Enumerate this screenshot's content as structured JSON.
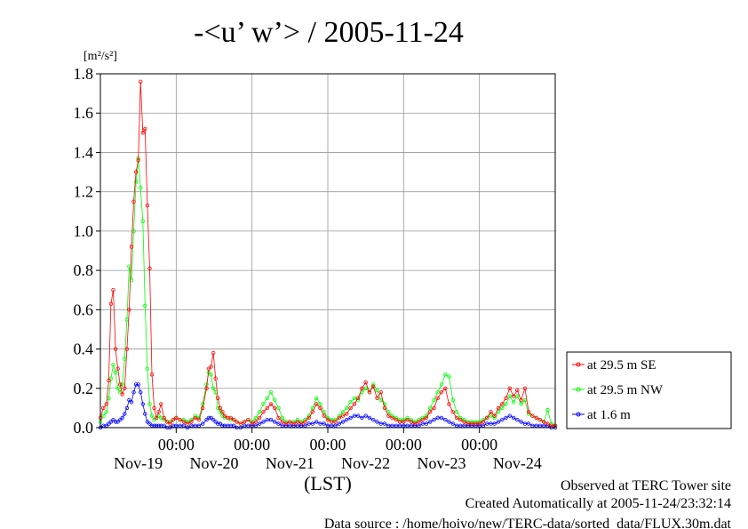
{
  "chart_data": {
    "type": "line",
    "title": "-<u’ w’> / 2005-11-24",
    "ylabel_unit": "[m²/s²]",
    "xlabel": "(LST)",
    "ylim": [
      0,
      1.8
    ],
    "xlim": [
      0,
      6
    ],
    "y_ticks": [
      "0.0",
      "0.2",
      "0.4",
      "0.6",
      "0.8",
      "1.0",
      "1.2",
      "1.4",
      "1.6",
      "1.8"
    ],
    "x_ticks": [
      {
        "pos": 1,
        "time": "00:00"
      },
      {
        "pos": 2,
        "time": "00:00"
      },
      {
        "pos": 3,
        "time": "00:00"
      },
      {
        "pos": 4,
        "time": "00:00"
      },
      {
        "pos": 5,
        "time": "00:00"
      }
    ],
    "x_day_labels": [
      {
        "pos": 0.5,
        "label": "Nov-19"
      },
      {
        "pos": 1.5,
        "label": "Nov-20"
      },
      {
        "pos": 2.5,
        "label": "Nov-21"
      },
      {
        "pos": 3.5,
        "label": "Nov-22"
      },
      {
        "pos": 4.5,
        "label": "Nov-23"
      },
      {
        "pos": 5.5,
        "label": "Nov-24"
      }
    ],
    "grid": true,
    "legend_position": "right",
    "series": [
      {
        "name": "at 29.5 m SE",
        "color": "#ff0000",
        "x": [
          0.0,
          0.04,
          0.08,
          0.11,
          0.14,
          0.17,
          0.2,
          0.23,
          0.26,
          0.29,
          0.32,
          0.35,
          0.38,
          0.41,
          0.44,
          0.47,
          0.5,
          0.53,
          0.56,
          0.59,
          0.62,
          0.65,
          0.68,
          0.71,
          0.74,
          0.77,
          0.8,
          0.84,
          0.88,
          0.92,
          0.96,
          1.0,
          1.05,
          1.1,
          1.15,
          1.2,
          1.25,
          1.3,
          1.35,
          1.4,
          1.43,
          1.46,
          1.49,
          1.52,
          1.55,
          1.58,
          1.61,
          1.64,
          1.68,
          1.72,
          1.76,
          1.8,
          1.85,
          1.9,
          1.95,
          2.0,
          2.05,
          2.1,
          2.15,
          2.2,
          2.25,
          2.3,
          2.35,
          2.4,
          2.45,
          2.5,
          2.55,
          2.6,
          2.65,
          2.7,
          2.75,
          2.8,
          2.85,
          2.9,
          2.95,
          3.0,
          3.05,
          3.1,
          3.15,
          3.2,
          3.25,
          3.3,
          3.35,
          3.4,
          3.45,
          3.5,
          3.55,
          3.6,
          3.65,
          3.7,
          3.75,
          3.8,
          3.85,
          3.9,
          3.95,
          4.0,
          4.05,
          4.1,
          4.15,
          4.2,
          4.25,
          4.3,
          4.35,
          4.4,
          4.45,
          4.5,
          4.55,
          4.6,
          4.65,
          4.7,
          4.75,
          4.8,
          4.85,
          4.9,
          4.95,
          5.0,
          5.05,
          5.1,
          5.15,
          5.2,
          5.25,
          5.3,
          5.35,
          5.4,
          5.45,
          5.5,
          5.55,
          5.6,
          5.65,
          5.7,
          5.75,
          5.8,
          5.85,
          5.9,
          5.95,
          6.0
        ],
        "values": [
          0.05,
          0.1,
          0.12,
          0.24,
          0.63,
          0.7,
          0.4,
          0.3,
          0.22,
          0.17,
          0.2,
          0.4,
          0.6,
          0.92,
          1.15,
          1.3,
          1.36,
          1.76,
          1.5,
          1.52,
          1.13,
          0.81,
          0.27,
          0.1,
          0.05,
          0.08,
          0.12,
          0.05,
          0.03,
          0.02,
          0.04,
          0.05,
          0.04,
          0.03,
          0.02,
          0.03,
          0.05,
          0.04,
          0.1,
          0.2,
          0.3,
          0.31,
          0.38,
          0.25,
          0.15,
          0.1,
          0.08,
          0.06,
          0.05,
          0.05,
          0.04,
          0.03,
          0.02,
          0.03,
          0.04,
          0.02,
          0.03,
          0.05,
          0.08,
          0.1,
          0.12,
          0.1,
          0.05,
          0.03,
          0.02,
          0.03,
          0.02,
          0.03,
          0.02,
          0.03,
          0.05,
          0.08,
          0.12,
          0.1,
          0.06,
          0.04,
          0.03,
          0.03,
          0.05,
          0.06,
          0.07,
          0.1,
          0.12,
          0.15,
          0.2,
          0.23,
          0.18,
          0.21,
          0.15,
          0.18,
          0.1,
          0.06,
          0.05,
          0.04,
          0.03,
          0.03,
          0.04,
          0.03,
          0.02,
          0.03,
          0.04,
          0.05,
          0.08,
          0.1,
          0.15,
          0.18,
          0.2,
          0.12,
          0.08,
          0.05,
          0.04,
          0.03,
          0.02,
          0.02,
          0.02,
          0.02,
          0.03,
          0.05,
          0.08,
          0.06,
          0.1,
          0.12,
          0.15,
          0.2,
          0.16,
          0.19,
          0.14,
          0.2,
          0.08,
          0.06,
          0.05,
          0.04,
          0.03,
          0.02,
          0.01,
          0.01
        ]
      },
      {
        "name": "at 29.5 m NW",
        "color": "#00ff00",
        "x": [
          0.0,
          0.04,
          0.08,
          0.11,
          0.14,
          0.17,
          0.2,
          0.23,
          0.26,
          0.29,
          0.32,
          0.35,
          0.38,
          0.41,
          0.44,
          0.47,
          0.5,
          0.53,
          0.56,
          0.59,
          0.62,
          0.65,
          0.68,
          0.71,
          0.74,
          0.77,
          0.8,
          0.84,
          0.88,
          0.92,
          0.96,
          1.0,
          1.05,
          1.1,
          1.15,
          1.2,
          1.25,
          1.3,
          1.35,
          1.4,
          1.43,
          1.46,
          1.49,
          1.52,
          1.55,
          1.58,
          1.61,
          1.64,
          1.68,
          1.72,
          1.76,
          1.8,
          1.85,
          1.9,
          1.95,
          2.0,
          2.05,
          2.1,
          2.15,
          2.2,
          2.25,
          2.3,
          2.35,
          2.4,
          2.45,
          2.5,
          2.55,
          2.6,
          2.65,
          2.7,
          2.75,
          2.8,
          2.85,
          2.9,
          2.95,
          3.0,
          3.05,
          3.1,
          3.15,
          3.2,
          3.25,
          3.3,
          3.35,
          3.4,
          3.45,
          3.5,
          3.55,
          3.6,
          3.65,
          3.7,
          3.75,
          3.8,
          3.85,
          3.9,
          3.95,
          4.0,
          4.05,
          4.1,
          4.15,
          4.2,
          4.25,
          4.3,
          4.35,
          4.4,
          4.45,
          4.5,
          4.55,
          4.6,
          4.65,
          4.7,
          4.75,
          4.8,
          4.85,
          4.9,
          4.95,
          5.0,
          5.05,
          5.1,
          5.15,
          5.2,
          5.25,
          5.3,
          5.35,
          5.4,
          5.45,
          5.5,
          5.55,
          5.6,
          5.65,
          5.7,
          5.75,
          5.8,
          5.85,
          5.9,
          5.95,
          6.0
        ],
        "values": [
          0.03,
          0.06,
          0.08,
          0.15,
          0.25,
          0.32,
          0.28,
          0.2,
          0.18,
          0.22,
          0.35,
          0.55,
          0.82,
          0.75,
          1.0,
          1.25,
          1.37,
          1.22,
          1.05,
          0.62,
          0.3,
          0.12,
          0.06,
          0.04,
          0.05,
          0.06,
          0.05,
          0.04,
          0.03,
          0.03,
          0.04,
          0.05,
          0.04,
          0.04,
          0.03,
          0.04,
          0.06,
          0.05,
          0.12,
          0.22,
          0.28,
          0.27,
          0.2,
          0.18,
          0.1,
          0.08,
          0.06,
          0.05,
          0.05,
          0.04,
          0.04,
          0.03,
          0.02,
          0.03,
          0.04,
          0.03,
          0.05,
          0.08,
          0.12,
          0.15,
          0.18,
          0.14,
          0.1,
          0.05,
          0.03,
          0.03,
          0.03,
          0.04,
          0.03,
          0.04,
          0.06,
          0.1,
          0.15,
          0.12,
          0.08,
          0.05,
          0.04,
          0.04,
          0.06,
          0.08,
          0.1,
          0.13,
          0.15,
          0.14,
          0.18,
          0.2,
          0.18,
          0.22,
          0.19,
          0.14,
          0.12,
          0.08,
          0.06,
          0.05,
          0.04,
          0.04,
          0.05,
          0.04,
          0.03,
          0.04,
          0.05,
          0.06,
          0.1,
          0.14,
          0.18,
          0.22,
          0.27,
          0.26,
          0.14,
          0.08,
          0.05,
          0.04,
          0.03,
          0.03,
          0.03,
          0.03,
          0.04,
          0.05,
          0.06,
          0.05,
          0.08,
          0.1,
          0.12,
          0.16,
          0.13,
          0.16,
          0.12,
          0.14,
          0.07,
          0.06,
          0.05,
          0.04,
          0.03,
          0.09,
          0.02,
          0.01
        ]
      },
      {
        "name": "at 1.6 m",
        "color": "#0000ff",
        "x": [
          0.0,
          0.04,
          0.08,
          0.11,
          0.14,
          0.17,
          0.2,
          0.23,
          0.26,
          0.29,
          0.32,
          0.35,
          0.38,
          0.41,
          0.44,
          0.47,
          0.5,
          0.53,
          0.56,
          0.59,
          0.62,
          0.65,
          0.68,
          0.71,
          0.74,
          0.77,
          0.8,
          0.84,
          0.88,
          0.92,
          0.96,
          1.0,
          1.05,
          1.1,
          1.15,
          1.2,
          1.25,
          1.3,
          1.35,
          1.4,
          1.43,
          1.46,
          1.49,
          1.52,
          1.55,
          1.58,
          1.61,
          1.64,
          1.68,
          1.72,
          1.76,
          1.8,
          1.85,
          1.9,
          1.95,
          2.0,
          2.05,
          2.1,
          2.15,
          2.2,
          2.25,
          2.3,
          2.35,
          2.4,
          2.45,
          2.5,
          2.55,
          2.6,
          2.65,
          2.7,
          2.75,
          2.8,
          2.85,
          2.9,
          2.95,
          3.0,
          3.05,
          3.1,
          3.15,
          3.2,
          3.25,
          3.3,
          3.35,
          3.4,
          3.45,
          3.5,
          3.55,
          3.6,
          3.65,
          3.7,
          3.75,
          3.8,
          3.85,
          3.9,
          3.95,
          4.0,
          4.05,
          4.1,
          4.15,
          4.2,
          4.25,
          4.3,
          4.35,
          4.4,
          4.45,
          4.5,
          4.55,
          4.6,
          4.65,
          4.7,
          4.75,
          4.8,
          4.85,
          4.9,
          4.95,
          5.0,
          5.05,
          5.1,
          5.15,
          5.2,
          5.25,
          5.3,
          5.35,
          5.4,
          5.45,
          5.5,
          5.55,
          5.6,
          5.65,
          5.7,
          5.75,
          5.8,
          5.85,
          5.9,
          5.95,
          6.0
        ],
        "values": [
          0.0,
          0.01,
          0.01,
          0.02,
          0.03,
          0.04,
          0.03,
          0.03,
          0.04,
          0.05,
          0.07,
          0.1,
          0.14,
          0.13,
          0.18,
          0.22,
          0.22,
          0.18,
          0.12,
          0.07,
          0.03,
          0.02,
          0.01,
          0.01,
          0.01,
          0.01,
          0.01,
          0.01,
          0.0,
          0.0,
          0.01,
          0.01,
          0.01,
          0.01,
          0.0,
          0.01,
          0.01,
          0.01,
          0.02,
          0.04,
          0.05,
          0.05,
          0.04,
          0.03,
          0.02,
          0.02,
          0.01,
          0.01,
          0.01,
          0.01,
          0.01,
          0.0,
          0.0,
          0.01,
          0.01,
          0.01,
          0.01,
          0.02,
          0.03,
          0.04,
          0.04,
          0.03,
          0.02,
          0.01,
          0.01,
          0.01,
          0.01,
          0.01,
          0.01,
          0.01,
          0.02,
          0.02,
          0.03,
          0.02,
          0.02,
          0.01,
          0.01,
          0.01,
          0.02,
          0.03,
          0.04,
          0.05,
          0.06,
          0.06,
          0.05,
          0.06,
          0.05,
          0.04,
          0.03,
          0.02,
          0.02,
          0.01,
          0.01,
          0.01,
          0.01,
          0.01,
          0.01,
          0.01,
          0.01,
          0.01,
          0.02,
          0.02,
          0.03,
          0.04,
          0.05,
          0.05,
          0.04,
          0.03,
          0.02,
          0.01,
          0.01,
          0.01,
          0.01,
          0.01,
          0.01,
          0.01,
          0.01,
          0.02,
          0.02,
          0.02,
          0.03,
          0.04,
          0.05,
          0.06,
          0.05,
          0.04,
          0.03,
          0.02,
          0.02,
          0.01,
          0.01,
          0.01,
          0.01,
          0.01,
          0.0,
          0.0
        ]
      }
    ]
  },
  "footer": {
    "line1": "Observed at TERC Tower site",
    "line2": "Created Automatically at 2005-11-24/23:32:14",
    "line3": "Data source : /home/hoivo/new/TERC-data/sorted_data/FLUX.30m.dat"
  }
}
